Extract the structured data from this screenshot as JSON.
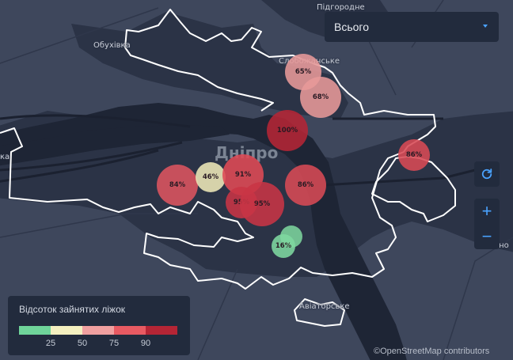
{
  "map": {
    "city_label": "Дніпро",
    "places": {
      "pidhorodne": "Підгородне",
      "obukhivka": "Обухівка",
      "sloboda_partial": "Слобожанське",
      "aviatorske": "Авіаторське",
      "left_edge": "ка",
      "right_edge": "оно"
    },
    "markers": [
      {
        "label": "65%",
        "value": 65,
        "color": "#e89a9a"
      },
      {
        "label": "68%",
        "value": 68,
        "color": "#e89a9a"
      },
      {
        "label": "100%",
        "value": 100,
        "color": "#b52535"
      },
      {
        "label": "86%",
        "value": 86,
        "color": "#d84a55"
      },
      {
        "label": "84%",
        "value": 84,
        "color": "#dd5560"
      },
      {
        "label": "46%",
        "value": 46,
        "color": "#eee8b8"
      },
      {
        "label": "91%",
        "value": 91,
        "color": "#e04a55"
      },
      {
        "label": "86%",
        "value": 86,
        "color": "#d84a55"
      },
      {
        "label": "95%",
        "value": 95,
        "color": "#c93545"
      },
      {
        "label": "95%",
        "value": 95,
        "color": "#c93545"
      },
      {
        "label": "16%",
        "value": 16,
        "color": "#7fd9a0"
      }
    ]
  },
  "filter": {
    "selected": "Всього"
  },
  "controls": {
    "refresh_icon": "refresh-icon",
    "zoom_in": "+",
    "zoom_out": "−"
  },
  "legend": {
    "title": "Відсоток зайнятих ліжок",
    "colors": [
      "#6fd49a",
      "#f4f0c0",
      "#f0a0a0",
      "#e85a62",
      "#b52535"
    ],
    "ticks": [
      "25",
      "50",
      "75",
      "90"
    ]
  },
  "attribution": "©OpenStreetMap contributors"
}
